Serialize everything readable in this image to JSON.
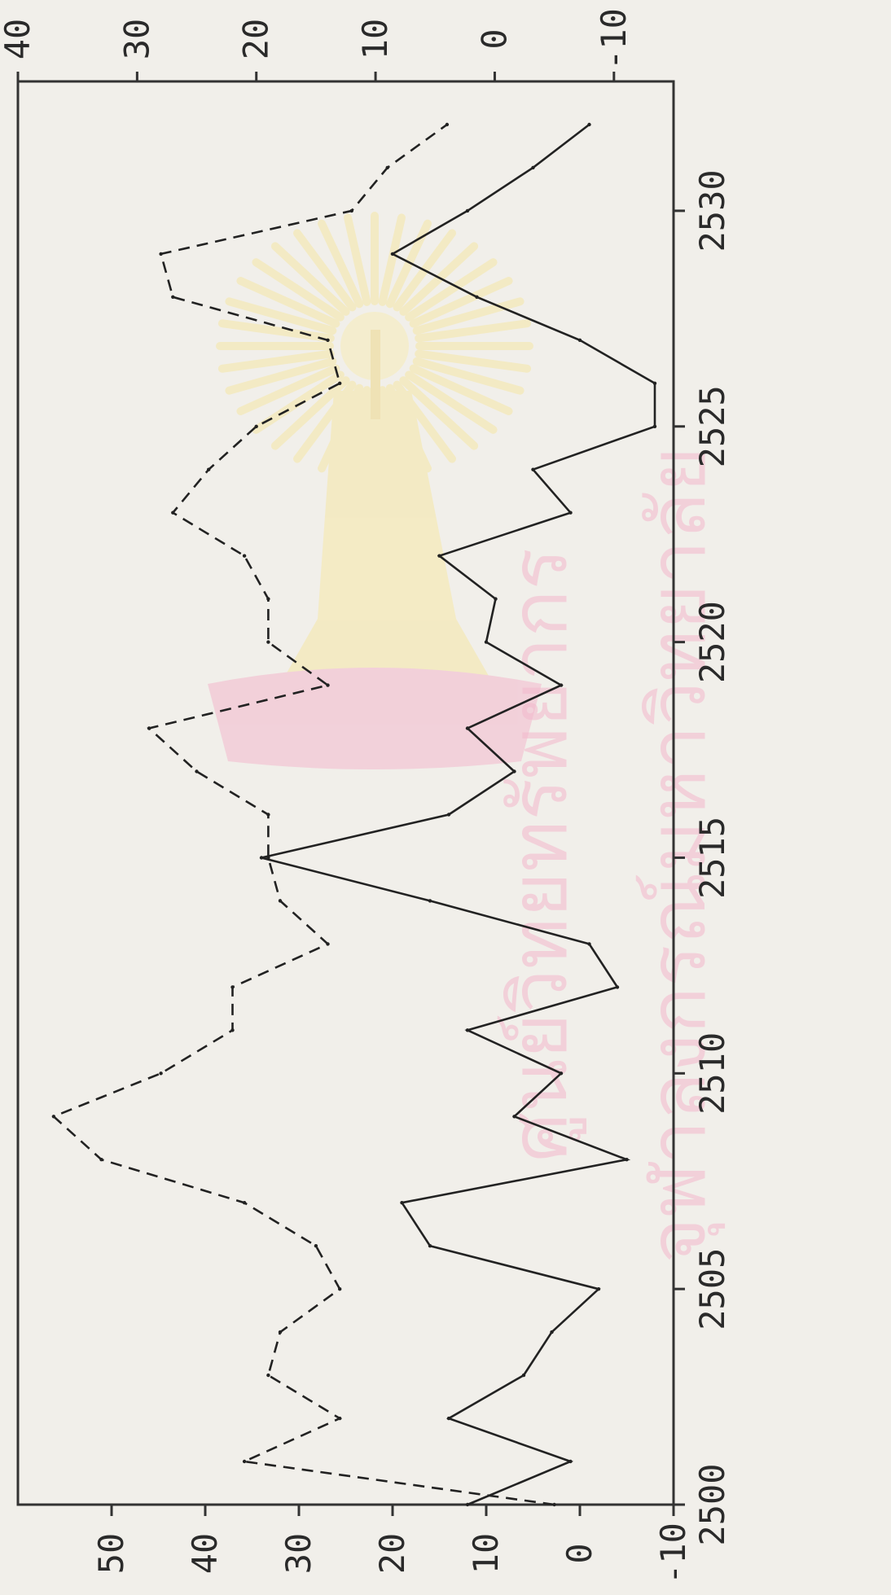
{
  "chart_data": {
    "type": "line",
    "orientation": "rotated-90-clockwise",
    "x": [
      2500,
      2501,
      2502,
      2503,
      2504,
      2505,
      2506,
      2507,
      2508,
      2509,
      2510,
      2511,
      2512,
      2513,
      2514,
      2515,
      2516,
      2517,
      2518,
      2519,
      2520,
      2521,
      2522,
      2523,
      2524,
      2525,
      2526,
      2527,
      2528,
      2529,
      2530,
      2531,
      2532
    ],
    "xlim": [
      2500,
      2533
    ],
    "x_ticks": [
      "2500",
      "2505",
      "2510",
      "2515",
      "2520",
      "2525",
      "2530"
    ],
    "series": [
      {
        "axis": "left",
        "style": "solid",
        "values": [
          12,
          1,
          14,
          6,
          3,
          -2,
          16,
          19,
          -5,
          7,
          2,
          12,
          -4,
          -1,
          16,
          34,
          14,
          7,
          12,
          2,
          10,
          9,
          15,
          1,
          5,
          -8,
          -8,
          0,
          11,
          20,
          12,
          5,
          -1
        ]
      },
      {
        "axis": "right",
        "style": "dashed",
        "values": [
          -5,
          21,
          13,
          19,
          18,
          13,
          15,
          21,
          33,
          37,
          28,
          22,
          22,
          14,
          18,
          19,
          19,
          25,
          29,
          14,
          19,
          19,
          21,
          27,
          24,
          20,
          13,
          14,
          27,
          28,
          12,
          9,
          4
        ]
      }
    ],
    "left_axis": {
      "ylim": [
        -10,
        60
      ],
      "ticks": [
        "-10",
        "0",
        "10",
        "20",
        "30",
        "40",
        "50"
      ]
    },
    "right_axis": {
      "ylim": [
        -15,
        40
      ],
      "ticks": [
        "-10",
        "0",
        "10",
        "20",
        "30",
        "40"
      ]
    },
    "grid": false,
    "legend": "none"
  },
  "watermark": {
    "line1": "ศูนย์วิทยทรัพยากร",
    "line2": "จุฬาลงกรณ์มหาวิทยาลัย",
    "color": "#f3b8cc",
    "emblem_color": "#f6e7a6"
  }
}
